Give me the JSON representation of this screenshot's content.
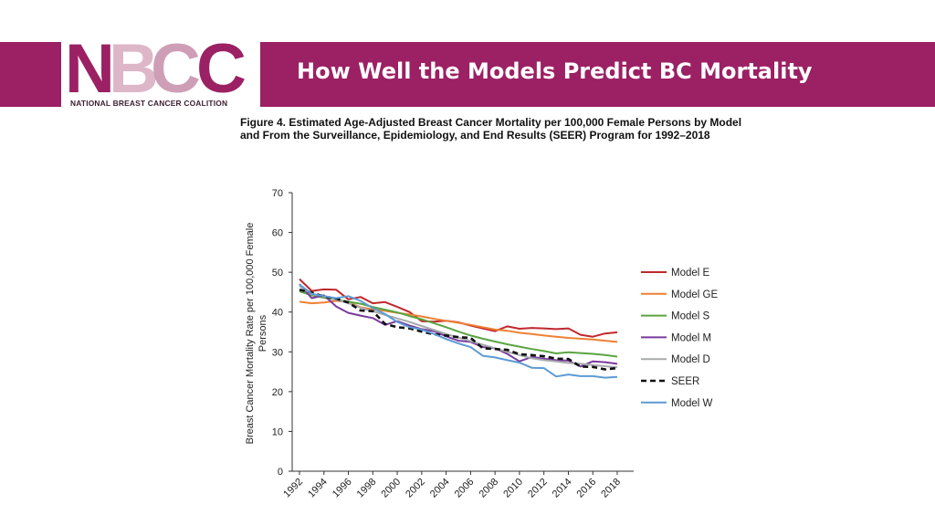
{
  "header": {
    "title": "How Well the Models Predict BC Mortality",
    "logo_text": "NBCC",
    "logo_subtitle": "NATIONAL BREAST CANCER COALITION",
    "banner_color": "#9b2064"
  },
  "figure": {
    "caption_line1": "Figure 4. Estimated Age-Adjusted Breast Cancer Mortality per 100,000 Female Persons by Model",
    "caption_line2": "and From the Surveillance, Epidemiology, and End Results (SEER) Program for 1992–2018"
  },
  "chart_data": {
    "type": "line",
    "title": "Estimated Age-Adjusted Breast Cancer Mortality per 100,000 Female Persons by Model and From the Surveillance, Epidemiology, and End Results (SEER) Program for 1992–2018",
    "xlabel": "",
    "ylabel_line1": "Breast Cancer Mortality Rate per 100,000 Female",
    "ylabel_line2": "Persons",
    "x": [
      1992,
      1993,
      1994,
      1995,
      1996,
      1997,
      1998,
      1999,
      2000,
      2001,
      2002,
      2003,
      2004,
      2005,
      2006,
      2007,
      2008,
      2009,
      2010,
      2011,
      2012,
      2013,
      2014,
      2015,
      2016,
      2017,
      2018
    ],
    "xticks": [
      "1992",
      "1994",
      "1996",
      "1998",
      "2000",
      "2002",
      "2004",
      "2006",
      "2008",
      "2010",
      "2012",
      "2014",
      "2016",
      "2018"
    ],
    "yticks": [
      "0",
      "10",
      "20",
      "30",
      "40",
      "50",
      "60",
      "70"
    ],
    "ylim": [
      0,
      70
    ],
    "legend_position": "right",
    "series": [
      {
        "name": "Model E",
        "color": "#c0282d",
        "dash": "",
        "values": [
          48.3,
          45.3,
          45.7,
          45.6,
          43.2,
          43.8,
          42.2,
          42.5,
          41.3,
          40,
          37.7,
          37.6,
          37.8,
          37.4,
          36.6,
          35.9,
          35.2,
          36.4,
          35.8,
          36,
          35.9,
          35.7,
          35.9,
          34.3,
          33.8,
          34.6,
          34.9
        ]
      },
      {
        "name": "Model GE",
        "color": "#ee8133",
        "dash": "",
        "values": [
          42.6,
          42.2,
          42.4,
          42.8,
          42.5,
          41.2,
          40.7,
          40.3,
          39.8,
          39.4,
          38.9,
          38.3,
          37.8,
          37.3,
          36.8,
          36.2,
          35.6,
          35.3,
          34.8,
          34.5,
          34.1,
          33.8,
          33.5,
          33.3,
          33.1,
          32.8,
          32.5
        ]
      },
      {
        "name": "Model S",
        "color": "#5aa442",
        "dash": "",
        "values": [
          45.2,
          44.2,
          43.6,
          43.1,
          42.6,
          42.1,
          41.3,
          40.6,
          39.9,
          39,
          38.2,
          37.2,
          36.2,
          35.1,
          34.1,
          33.3,
          32.6,
          31.9,
          31.3,
          30.7,
          30.2,
          29.6,
          29.9,
          29.7,
          29.5,
          29.2,
          28.8
        ]
      },
      {
        "name": "Model M",
        "color": "#7a3b9c",
        "dash": "",
        "values": [
          47,
          43.5,
          44.2,
          41.4,
          39.8,
          39.1,
          38.5,
          36.8,
          37.7,
          36.6,
          35.7,
          35.2,
          33.9,
          32.8,
          32.5,
          31.2,
          30.9,
          29.5,
          27.6,
          28.7,
          28.3,
          27.9,
          27.8,
          26.3,
          27.6,
          27.4,
          27
        ]
      },
      {
        "name": "Model D",
        "color": "#a7a9ac",
        "dash": "",
        "values": [
          46.6,
          44.5,
          43.9,
          43.1,
          42.2,
          41.1,
          40.2,
          39.3,
          38.4,
          37.5,
          36.5,
          35.5,
          34.5,
          33.6,
          32.7,
          31.8,
          30.9,
          30,
          29.2,
          28.4,
          27.9,
          27.6,
          27.2,
          27,
          26.7,
          26.4,
          26.1
        ]
      },
      {
        "name": "SEER",
        "color": "#111111",
        "dash": "6,4",
        "values": [
          45.6,
          44.9,
          43.9,
          43.4,
          42.4,
          40.4,
          40.2,
          37,
          36.2,
          35.9,
          35.1,
          34.4,
          34.1,
          33.7,
          33.5,
          30.9,
          30.7,
          30.5,
          29.4,
          29.2,
          28.9,
          28.3,
          28.2,
          26.3,
          26.2,
          25.6,
          25.9
        ]
      },
      {
        "name": "Model W",
        "color": "#5b9bd5",
        "dash": "",
        "values": [
          46.9,
          44.6,
          44,
          43.5,
          44,
          42.8,
          41,
          39.5,
          37.5,
          36.2,
          35.6,
          34.5,
          33.2,
          32.1,
          31.2,
          29,
          28.6,
          27.9,
          27.3,
          26,
          25.9,
          23.8,
          24.3,
          23.9,
          23.9,
          23.5,
          23.7
        ]
      }
    ]
  }
}
